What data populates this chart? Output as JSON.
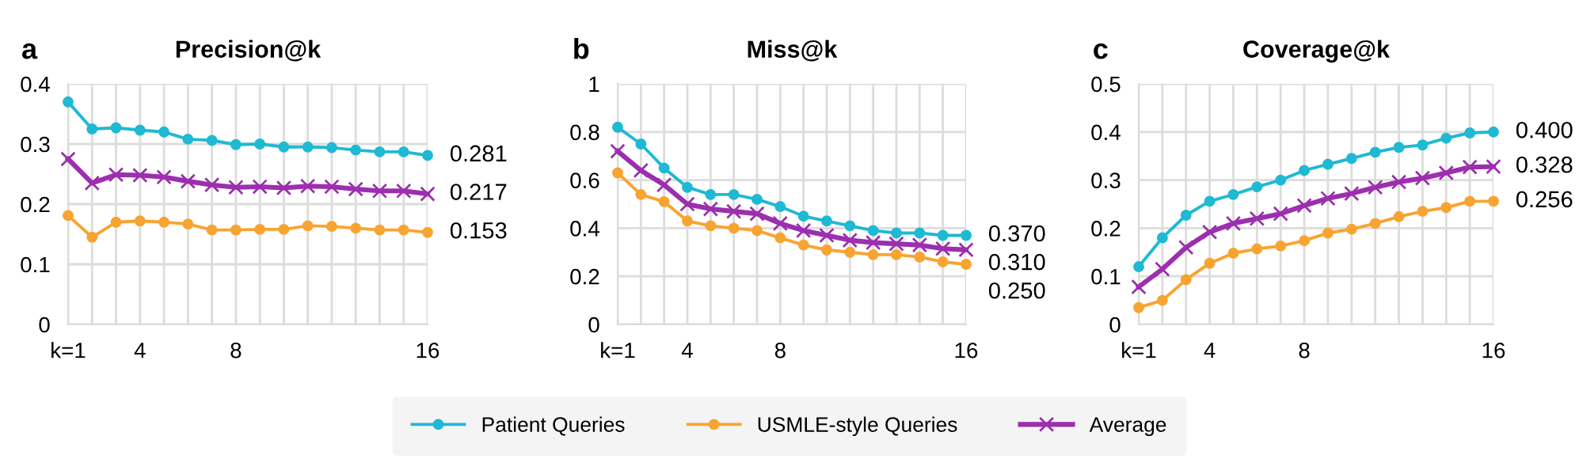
{
  "chart_data": [
    {
      "type": "line",
      "title": "Precision@k",
      "annotations": [
        "a"
      ],
      "categories": [
        "k=1",
        null,
        null,
        "4",
        null,
        null,
        null,
        "8",
        null,
        null,
        null,
        null,
        null,
        null,
        null,
        "16"
      ],
      "ylim": [
        0,
        0.4
      ],
      "yticks": [
        0,
        0.1,
        0.2,
        0.3,
        0.4
      ],
      "grid": true,
      "legend": "bottom",
      "series": [
        {
          "name": "Patient Queries",
          "color": "#1fb9d3",
          "marker": "circle",
          "values": [
            0.37,
            0.325,
            0.327,
            0.323,
            0.32,
            0.308,
            0.306,
            0.299,
            0.3,
            0.295,
            0.295,
            0.294,
            0.29,
            0.287,
            0.287,
            0.281
          ],
          "value_labels": [
            null,
            null,
            null,
            null,
            null,
            null,
            null,
            null,
            null,
            null,
            null,
            null,
            null,
            null,
            null,
            "0.281"
          ]
        },
        {
          "name": "USMLE-style Queries",
          "color": "#f8a431",
          "marker": "circle",
          "values": [
            0.181,
            0.145,
            0.17,
            0.172,
            0.17,
            0.167,
            0.157,
            0.157,
            0.158,
            0.158,
            0.164,
            0.163,
            0.16,
            0.157,
            0.157,
            0.153
          ],
          "value_labels": [
            null,
            null,
            null,
            null,
            null,
            null,
            null,
            null,
            null,
            null,
            null,
            null,
            null,
            null,
            null,
            "0.153"
          ]
        },
        {
          "name": "Average",
          "color": "#9b2fae",
          "marker": "cross",
          "values": [
            0.275,
            0.235,
            0.249,
            0.248,
            0.245,
            0.238,
            0.232,
            0.228,
            0.229,
            0.227,
            0.23,
            0.229,
            0.225,
            0.222,
            0.222,
            0.217
          ],
          "value_labels": [
            null,
            null,
            null,
            null,
            null,
            null,
            null,
            null,
            null,
            null,
            null,
            null,
            null,
            null,
            null,
            "0.217"
          ]
        }
      ]
    },
    {
      "type": "line",
      "title": "Miss@k",
      "annotations": [
        "b"
      ],
      "categories": [
        "k=1",
        null,
        null,
        "4",
        null,
        null,
        null,
        "8",
        null,
        null,
        null,
        null,
        null,
        null,
        null,
        "16"
      ],
      "ylim": [
        0,
        1
      ],
      "yticks": [
        0,
        0.2,
        0.4,
        0.6,
        0.8,
        1
      ],
      "grid": true,
      "legend": "bottom",
      "series": [
        {
          "name": "Patient Queries",
          "color": "#1fb9d3",
          "marker": "circle",
          "values": [
            0.82,
            0.75,
            0.65,
            0.57,
            0.54,
            0.54,
            0.52,
            0.49,
            0.45,
            0.43,
            0.41,
            0.39,
            0.38,
            0.38,
            0.37,
            0.37
          ],
          "value_labels": [
            null,
            null,
            null,
            null,
            null,
            null,
            null,
            null,
            null,
            null,
            null,
            null,
            null,
            null,
            null,
            "0.370"
          ]
        },
        {
          "name": "USMLE-style Queries",
          "color": "#f8a431",
          "marker": "circle",
          "values": [
            0.63,
            0.54,
            0.51,
            0.43,
            0.41,
            0.4,
            0.39,
            0.36,
            0.33,
            0.31,
            0.3,
            0.29,
            0.29,
            0.28,
            0.26,
            0.25
          ],
          "value_labels": [
            null,
            null,
            null,
            null,
            null,
            null,
            null,
            null,
            null,
            null,
            null,
            null,
            null,
            null,
            null,
            "0.250"
          ]
        },
        {
          "name": "Average",
          "color": "#9b2fae",
          "marker": "cross",
          "values": [
            0.72,
            0.64,
            0.58,
            0.5,
            0.48,
            0.47,
            0.46,
            0.42,
            0.39,
            0.37,
            0.35,
            0.34,
            0.335,
            0.33,
            0.315,
            0.31
          ],
          "value_labels": [
            null,
            null,
            null,
            null,
            null,
            null,
            null,
            null,
            null,
            null,
            null,
            null,
            null,
            null,
            null,
            "0.310"
          ]
        }
      ]
    },
    {
      "type": "line",
      "title": "Coverage@k",
      "annotations": [
        "c"
      ],
      "categories": [
        "k=1",
        null,
        null,
        "4",
        null,
        null,
        null,
        "8",
        null,
        null,
        null,
        null,
        null,
        null,
        null,
        "16"
      ],
      "ylim": [
        0,
        0.5
      ],
      "yticks": [
        0,
        0.1,
        0.2,
        0.3,
        0.4,
        0.5
      ],
      "grid": true,
      "legend": "bottom",
      "series": [
        {
          "name": "Patient Queries",
          "color": "#1fb9d3",
          "marker": "circle",
          "values": [
            0.12,
            0.18,
            0.227,
            0.256,
            0.27,
            0.286,
            0.3,
            0.32,
            0.333,
            0.345,
            0.358,
            0.368,
            0.373,
            0.387,
            0.398,
            0.4
          ],
          "value_labels": [
            null,
            null,
            null,
            null,
            null,
            null,
            null,
            null,
            null,
            null,
            null,
            null,
            null,
            null,
            null,
            "0.400"
          ]
        },
        {
          "name": "USMLE-style Queries",
          "color": "#f8a431",
          "marker": "circle",
          "values": [
            0.035,
            0.05,
            0.093,
            0.127,
            0.148,
            0.157,
            0.163,
            0.174,
            0.19,
            0.198,
            0.21,
            0.224,
            0.235,
            0.243,
            0.256,
            0.256
          ],
          "value_labels": [
            null,
            null,
            null,
            null,
            null,
            null,
            null,
            null,
            null,
            null,
            null,
            null,
            null,
            null,
            null,
            "0.256"
          ]
        },
        {
          "name": "Average",
          "color": "#9b2fae",
          "marker": "cross",
          "values": [
            0.078,
            0.115,
            0.16,
            0.192,
            0.21,
            0.22,
            0.23,
            0.247,
            0.262,
            0.272,
            0.285,
            0.296,
            0.304,
            0.315,
            0.327,
            0.328
          ],
          "value_labels": [
            null,
            null,
            null,
            null,
            null,
            null,
            null,
            null,
            null,
            null,
            null,
            null,
            null,
            null,
            null,
            "0.328"
          ]
        }
      ]
    }
  ]
}
